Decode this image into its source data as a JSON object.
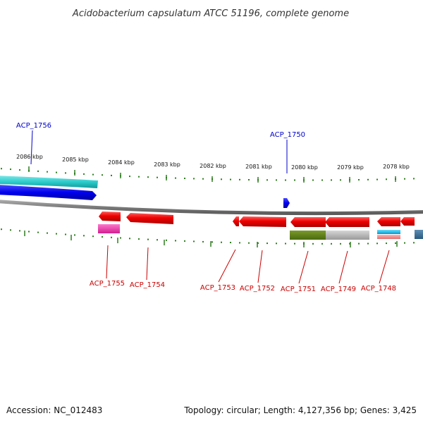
{
  "title": "Acidobacterium capsulatum ATCC 51196, complete genome",
  "footer": {
    "accession": "Accession: NC_012483",
    "summary": "Topology: circular; Length: 4,127,356 bp; Genes: 3,425"
  },
  "colors": {
    "forward_label": "#0000cc",
    "reverse_label": "#cc0000",
    "tick": "#2e7d1e",
    "backbone": "#777777"
  },
  "ticks": [
    "2086 kbp",
    "2085 kbp",
    "2084 kbp",
    "2083 kbp",
    "2082 kbp",
    "2081 kbp",
    "2080 kbp",
    "2079 kbp",
    "2078 kbp"
  ],
  "forward_labels": [
    "ACP_1756",
    "ACP_1750"
  ],
  "reverse_labels": [
    "ACP_1755",
    "ACP_1754",
    "ACP_1753",
    "ACP_1752",
    "ACP_1751",
    "ACP_1749",
    "ACP_1748"
  ]
}
